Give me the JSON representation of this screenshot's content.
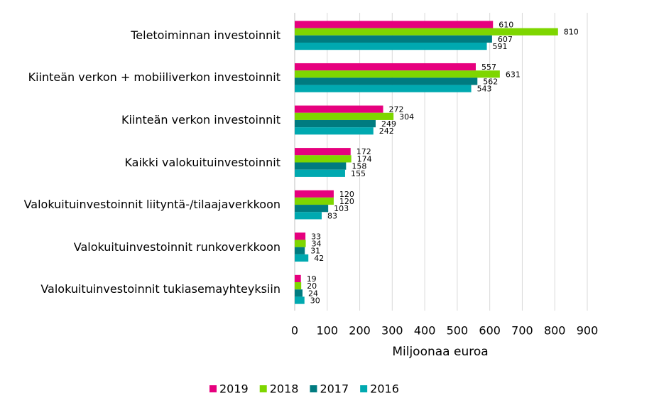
{
  "chart_data": {
    "type": "hbar",
    "x_label": "Miljoonaa euroa",
    "categories": [
      "Teletoiminnan investoinnit",
      "Kiinteän verkon + mobiiliverkon investoinnit",
      "Kiinteän verkon investoinnit",
      "Kaikki valokuituinvestoinnit",
      "Valokuituinvestoinnit liityntä-/tilaajaverkkoon",
      "Valokuituinvestoinnit runkoverkkoon",
      "Valokuituinvestoinnit tukiasemayhteyksiin"
    ],
    "series": [
      {
        "name": "2019",
        "color": "#e6007e",
        "values": [
          610,
          557,
          272,
          172,
          120,
          33,
          19
        ]
      },
      {
        "name": "2018",
        "color": "#7ed600",
        "values": [
          810,
          631,
          304,
          174,
          120,
          34,
          20
        ]
      },
      {
        "name": "2017",
        "color": "#007b80",
        "values": [
          607,
          562,
          249,
          158,
          103,
          31,
          24
        ]
      },
      {
        "name": "2016",
        "color": "#00a9b0",
        "values": [
          591,
          543,
          242,
          155,
          83,
          42,
          30
        ]
      }
    ],
    "xlim": [
      0,
      900
    ],
    "xticks": [
      0,
      100,
      200,
      300,
      400,
      500,
      600,
      700,
      800,
      900
    ],
    "grid": true,
    "legend": "bottom"
  }
}
